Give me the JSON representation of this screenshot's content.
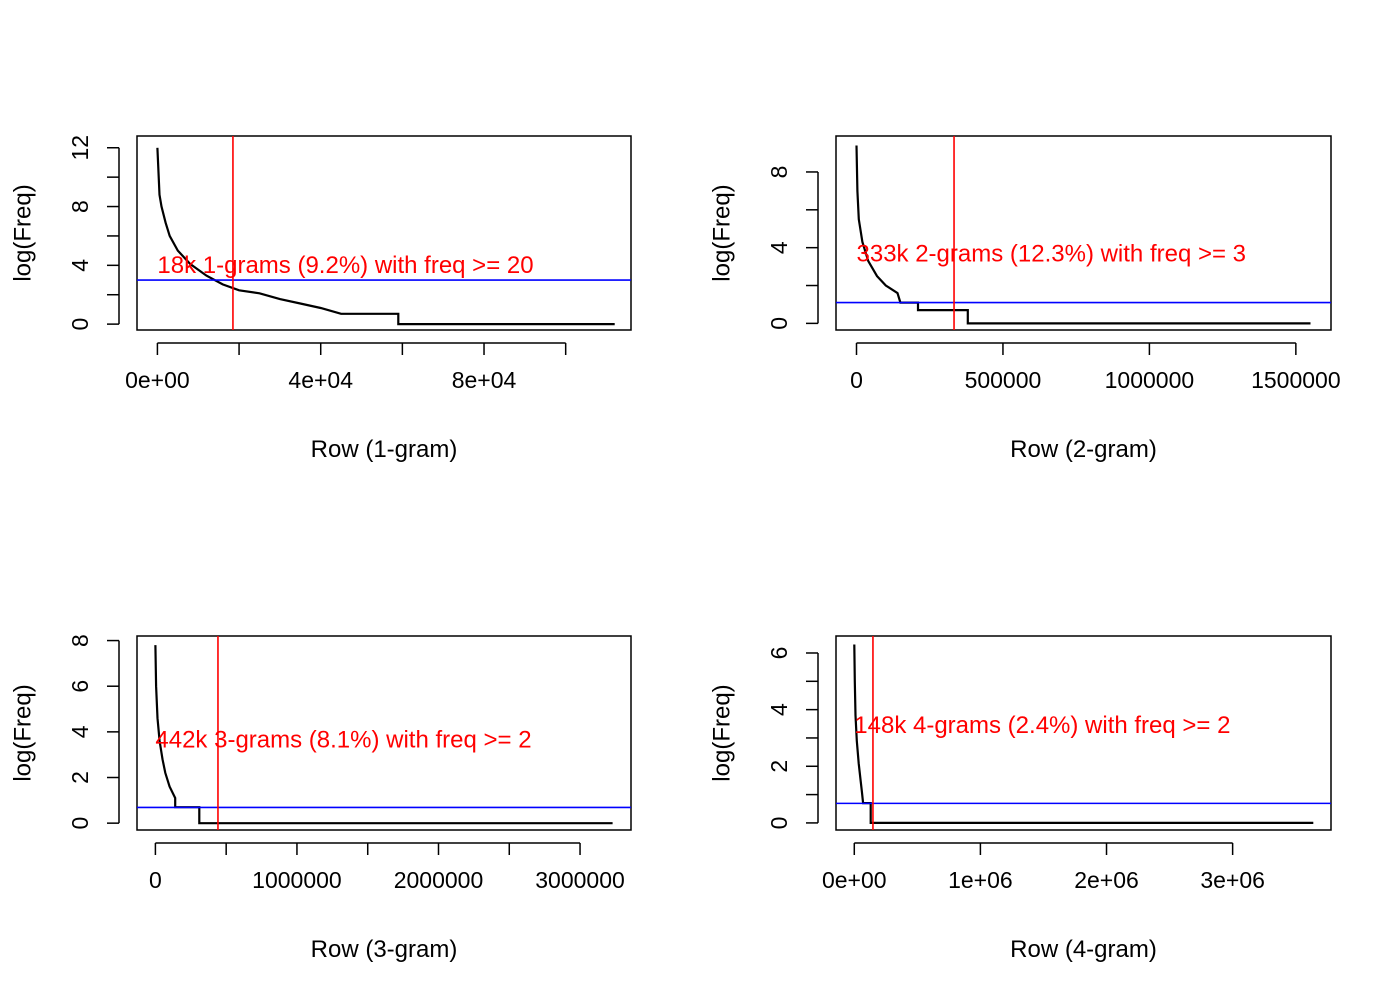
{
  "chart_data": [
    {
      "type": "line",
      "xlabel": "Row (1-gram)",
      "ylabel": "log(Freq)",
      "xlim": [
        -5000,
        116000
      ],
      "ylim": [
        -0.4,
        12.8
      ],
      "xticks": [
        0,
        20000,
        40000,
        60000,
        80000,
        100000
      ],
      "xtick_labels": [
        "0e+00",
        "",
        "4e+04",
        "",
        "8e+04",
        ""
      ],
      "yticks": [
        0,
        2,
        4,
        6,
        8,
        10,
        12
      ],
      "ytick_labels": [
        "0",
        "",
        "4",
        "",
        "8",
        "",
        "12"
      ],
      "curve": [
        [
          0,
          12.0
        ],
        [
          500,
          8.8
        ],
        [
          1000,
          8.0
        ],
        [
          2000,
          6.9
        ],
        [
          3000,
          6.0
        ],
        [
          5000,
          5.0
        ],
        [
          8000,
          4.1
        ],
        [
          12000,
          3.3
        ],
        [
          16000,
          2.7
        ],
        [
          20000,
          2.3
        ],
        [
          25000,
          2.1
        ],
        [
          30000,
          1.7
        ],
        [
          35000,
          1.4
        ],
        [
          40000,
          1.1
        ],
        [
          45000,
          0.7
        ],
        [
          59000,
          0.7
        ],
        [
          59000,
          0.0
        ],
        [
          112000,
          0.0
        ]
      ],
      "vline": {
        "x": 18500,
        "color": "#ff0000"
      },
      "hline": {
        "y": 3.0,
        "color": "#0000ff"
      },
      "annotation": {
        "text": "18k 1-grams (9.2%) with freq >= 20",
        "x": 0,
        "y": 3.9,
        "color": "#ff0000"
      }
    },
    {
      "type": "line",
      "xlabel": "Row (2-gram)",
      "ylabel": "log(Freq)",
      "xlim": [
        -70000,
        1620000
      ],
      "ylim": [
        -0.35,
        9.9
      ],
      "xticks": [
        0,
        500000,
        1000000,
        1500000
      ],
      "xtick_labels": [
        "0",
        "500000",
        "1000000",
        "1500000"
      ],
      "yticks": [
        0,
        2,
        4,
        6,
        8
      ],
      "ytick_labels": [
        "0",
        "",
        "4",
        "",
        "8"
      ],
      "curve": [
        [
          0,
          9.4
        ],
        [
          3000,
          7.0
        ],
        [
          8000,
          5.5
        ],
        [
          20000,
          4.3
        ],
        [
          40000,
          3.3
        ],
        [
          70000,
          2.5
        ],
        [
          100000,
          2.0
        ],
        [
          140000,
          1.6
        ],
        [
          150000,
          1.1
        ],
        [
          210000,
          1.1
        ],
        [
          210000,
          0.7
        ],
        [
          380000,
          0.7
        ],
        [
          380000,
          0.0
        ],
        [
          1550000,
          0.0
        ]
      ],
      "vline": {
        "x": 333000,
        "color": "#ff0000"
      },
      "hline": {
        "y": 1.1,
        "color": "#0000ff"
      },
      "annotation": {
        "text": "333k 2-grams (12.3%) with freq >= 3",
        "x": 0,
        "y": 3.6,
        "color": "#ff0000"
      }
    },
    {
      "type": "line",
      "xlabel": "Row (3-gram)",
      "ylabel": "log(Freq)",
      "xlim": [
        -130000,
        3360000
      ],
      "ylim": [
        -0.3,
        8.2
      ],
      "xticks": [
        0,
        500000,
        1000000,
        1500000,
        2000000,
        2500000,
        3000000
      ],
      "xtick_labels": [
        "0",
        "",
        "1000000",
        "",
        "2000000",
        "",
        "3000000"
      ],
      "yticks": [
        0,
        2,
        4,
        6,
        8
      ],
      "ytick_labels": [
        "0",
        "2",
        "4",
        "6",
        "8"
      ],
      "curve": [
        [
          0,
          7.8
        ],
        [
          5000,
          6.0
        ],
        [
          15000,
          4.6
        ],
        [
          30000,
          3.6
        ],
        [
          50000,
          2.8
        ],
        [
          70000,
          2.2
        ],
        [
          100000,
          1.6
        ],
        [
          140000,
          1.1
        ],
        [
          140000,
          0.7
        ],
        [
          310000,
          0.7
        ],
        [
          310000,
          0.0
        ],
        [
          3230000,
          0.0
        ]
      ],
      "vline": {
        "x": 442000,
        "color": "#ff0000"
      },
      "hline": {
        "y": 0.69,
        "color": "#0000ff"
      },
      "annotation": {
        "text": "442k 3-grams (8.1%) with freq >= 2",
        "x": 0,
        "y": 3.6,
        "color": "#ff0000"
      }
    },
    {
      "type": "line",
      "xlabel": "Row (4-gram)",
      "ylabel": "log(Freq)",
      "xlim": [
        -145000,
        3780000
      ],
      "ylim": [
        -0.25,
        6.6
      ],
      "xticks": [
        0,
        1000000,
        2000000,
        3000000
      ],
      "xtick_labels": [
        "0e+00",
        "1e+06",
        "2e+06",
        "3e+06"
      ],
      "yticks": [
        0,
        1,
        2,
        3,
        4,
        5,
        6
      ],
      "ytick_labels": [
        "0",
        "",
        "2",
        "",
        "4",
        "",
        "6"
      ],
      "curve": [
        [
          0,
          6.3
        ],
        [
          4000,
          5.0
        ],
        [
          10000,
          3.8
        ],
        [
          20000,
          2.9
        ],
        [
          35000,
          2.1
        ],
        [
          50000,
          1.5
        ],
        [
          60000,
          1.1
        ],
        [
          70000,
          0.7
        ],
        [
          130000,
          0.7
        ],
        [
          130000,
          0.0
        ],
        [
          3640000,
          0.0
        ]
      ],
      "vline": {
        "x": 148000,
        "color": "#ff0000"
      },
      "hline": {
        "y": 0.69,
        "color": "#0000ff"
      },
      "annotation": {
        "text": "148k 4-grams (2.4%) with freq >= 2",
        "x": 0,
        "y": 3.4,
        "color": "#ff0000"
      }
    }
  ]
}
